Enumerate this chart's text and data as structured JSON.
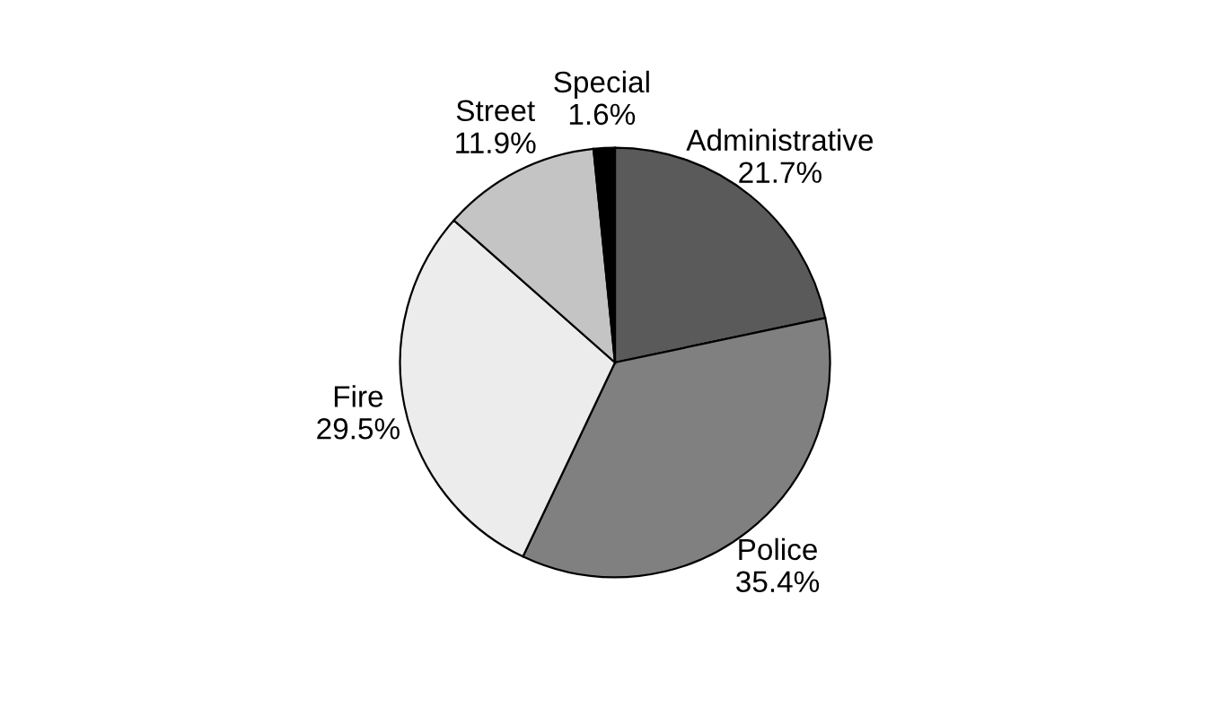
{
  "chart_data": {
    "type": "pie",
    "categories": [
      "Administrative",
      "Police",
      "Fire",
      "Street",
      "Special"
    ],
    "values": [
      21.7,
      35.4,
      29.5,
      11.9,
      1.6
    ],
    "value_labels": [
      "21.7%",
      "35.4%",
      "29.5%",
      "11.9%",
      "1.6%"
    ],
    "colors": [
      "#5a5a5a",
      "#808080",
      "#ececec",
      "#c4c4c4",
      "#000000"
    ]
  }
}
